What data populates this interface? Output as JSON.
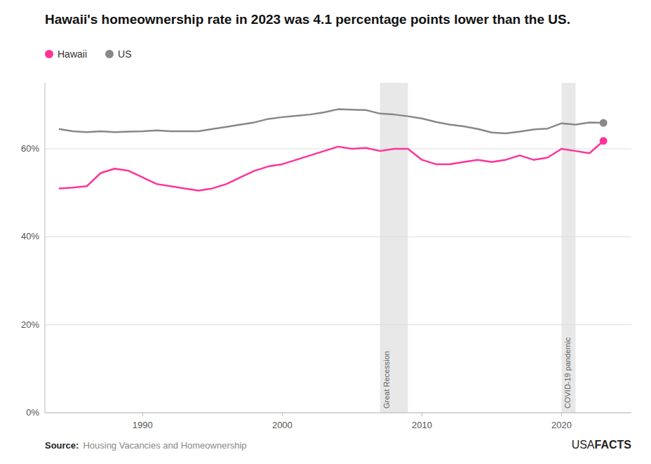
{
  "chart_data": {
    "type": "line",
    "title": "Hawaii's homeownership rate in 2023 was 4.1 percentage points lower than the US.",
    "x": [
      1984,
      1985,
      1986,
      1987,
      1988,
      1989,
      1990,
      1991,
      1992,
      1993,
      1994,
      1995,
      1996,
      1997,
      1998,
      1999,
      2000,
      2001,
      2002,
      2003,
      2004,
      2005,
      2006,
      2007,
      2008,
      2009,
      2010,
      2011,
      2012,
      2013,
      2014,
      2015,
      2016,
      2017,
      2018,
      2019,
      2020,
      2021,
      2022,
      2023
    ],
    "series": [
      {
        "name": "Hawaii",
        "color": "#FF3399",
        "values": [
          51.0,
          51.2,
          51.5,
          54.5,
          55.5,
          55.0,
          53.5,
          52.0,
          51.5,
          51.0,
          50.5,
          51.0,
          52.0,
          53.5,
          55.0,
          56.0,
          56.5,
          57.5,
          58.5,
          59.5,
          60.5,
          60.0,
          60.2,
          59.5,
          60.0,
          60.0,
          57.5,
          56.5,
          56.5,
          57.0,
          57.5,
          57.0,
          57.5,
          58.5,
          57.5,
          58.0,
          60.0,
          59.5,
          59.0,
          61.8
        ]
      },
      {
        "name": "US",
        "color": "#888888",
        "values": [
          64.5,
          64.0,
          63.8,
          64.0,
          63.8,
          63.9,
          64.0,
          64.2,
          64.0,
          64.0,
          64.0,
          64.5,
          65.0,
          65.5,
          66.0,
          66.8,
          67.2,
          67.5,
          67.8,
          68.3,
          69.0,
          68.9,
          68.8,
          68.0,
          67.8,
          67.4,
          66.9,
          66.1,
          65.5,
          65.1,
          64.5,
          63.7,
          63.5,
          63.9,
          64.4,
          64.6,
          65.8,
          65.5,
          66.0,
          65.9
        ]
      }
    ],
    "xlim": [
      1983,
      2025
    ],
    "xticks": [
      1990,
      2000,
      2010,
      2020
    ],
    "ylim": [
      0,
      75
    ],
    "yticks": [
      {
        "value": 0,
        "label": "0%"
      },
      {
        "value": 20,
        "label": "20%"
      },
      {
        "value": 40,
        "label": "40%"
      },
      {
        "value": 60,
        "label": "60%"
      }
    ],
    "grid": true,
    "legend": "top",
    "annotations": [
      {
        "text": "Great Recession",
        "x_start": 2007,
        "x_end": 2009,
        "color": "#e8e8e8"
      },
      {
        "text": "COVID-19 pandemic",
        "x_start": 2020,
        "x_end": 2021,
        "color": "#e8e8e8"
      }
    ],
    "source_label": "Source:",
    "source": "Housing Vacancies and Homeownership",
    "branding": [
      "USA",
      "FACTS"
    ]
  }
}
